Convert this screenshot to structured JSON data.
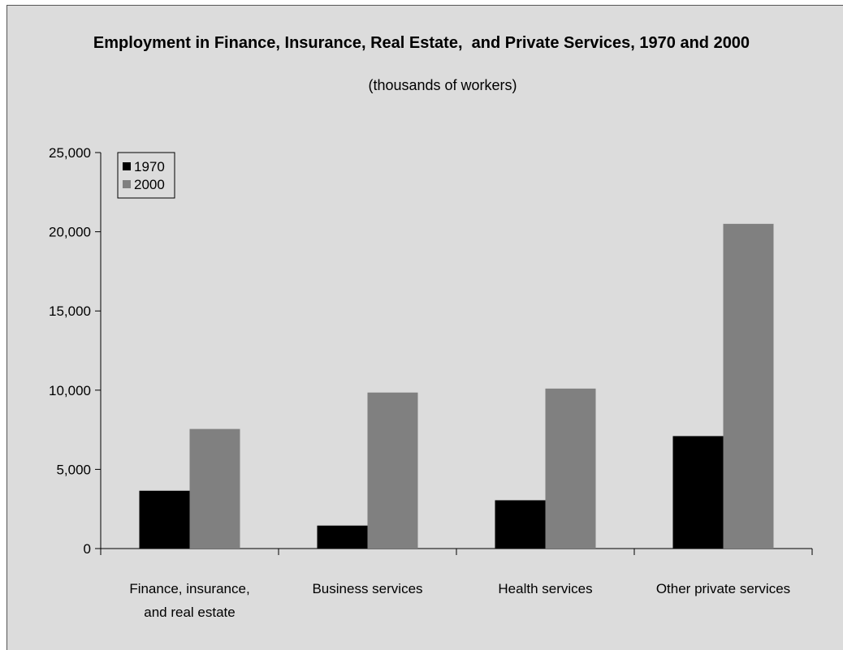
{
  "chart_data": {
    "type": "bar",
    "title": "Employment in Finance, Insurance, Real Estate,  and Private Services, 1970 and 2000",
    "subtitle": "(thousands of workers)",
    "categories": [
      [
        "Finance, insurance,",
        "and real estate"
      ],
      [
        "Business services"
      ],
      [
        "Health services"
      ],
      [
        "Other private services"
      ]
    ],
    "series": [
      {
        "name": "1970",
        "color": "#000000",
        "values": [
          3650,
          1450,
          3050,
          7100
        ]
      },
      {
        "name": "2000",
        "color": "#808080",
        "values": [
          7550,
          9850,
          10100,
          20500
        ]
      }
    ],
    "ylim": [
      0,
      25000
    ],
    "yticks": [
      0,
      5000,
      10000,
      15000,
      20000,
      25000
    ],
    "ytick_labels": [
      "0",
      "5,000",
      "10,000",
      "15,000",
      "20,000",
      "25,000"
    ],
    "grid": false,
    "legend_position": "top-left",
    "background_color": "#dcdcdc"
  }
}
